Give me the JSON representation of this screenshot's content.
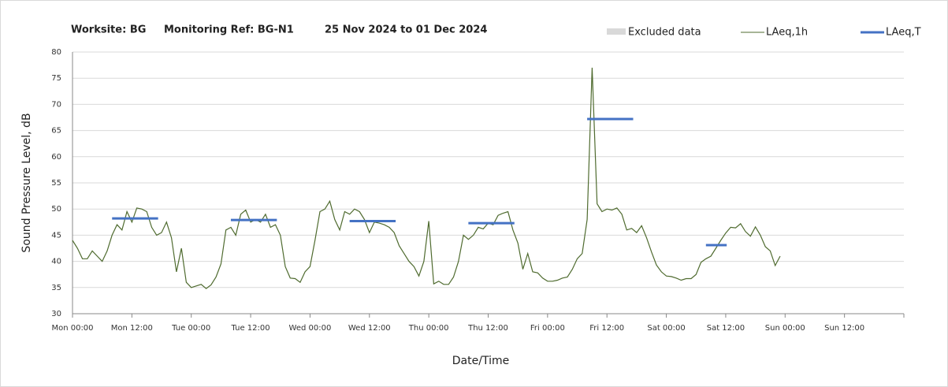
{
  "chart_data": {
    "type": "line",
    "title": [
      "Worksite: BG",
      "Monitoring Ref: BG-N1",
      "25 Nov 2024 to 01 Dec 2024"
    ],
    "x_label": "Date/Time",
    "y_label": "Sound Pressure Level, dB",
    "xlim": [
      0,
      168
    ],
    "xticks": [
      {
        "value": 0,
        "label": "Mon 00:00"
      },
      {
        "value": 12,
        "label": "Mon 12:00"
      },
      {
        "value": 24,
        "label": "Tue 00:00"
      },
      {
        "value": 36,
        "label": "Tue 12:00"
      },
      {
        "value": 48,
        "label": "Wed 00:00"
      },
      {
        "value": 60,
        "label": "Wed 12:00"
      },
      {
        "value": 72,
        "label": "Thu 00:00"
      },
      {
        "value": 84,
        "label": "Thu 12:00"
      },
      {
        "value": 96,
        "label": "Fri 00:00"
      },
      {
        "value": 108,
        "label": "Fri 12:00"
      },
      {
        "value": 120,
        "label": "Sat 00:00"
      },
      {
        "value": 132,
        "label": "Sat 12:00"
      },
      {
        "value": 144,
        "label": "Sun 00:00"
      },
      {
        "value": 156,
        "label": "Sun 12:00"
      }
    ],
    "ylim": [
      30,
      80
    ],
    "yticks": [
      30,
      35,
      40,
      45,
      50,
      55,
      60,
      65,
      70,
      75,
      80
    ],
    "grid": true,
    "legend": [
      {
        "name": "Excluded data",
        "color": "#d9d9d9"
      }
    ],
    "series": [
      {
        "name": "LAeq,1h",
        "color": "#4f6b2f",
        "x": [
          0,
          1,
          2,
          3,
          4,
          5,
          6,
          7,
          8,
          9,
          10,
          11,
          12,
          13,
          14,
          15,
          16,
          17,
          18,
          19,
          20,
          21,
          22,
          23,
          24,
          25,
          26,
          27,
          28,
          29,
          30,
          31,
          32,
          33,
          34,
          35,
          36,
          37,
          38,
          39,
          40,
          41,
          42,
          43,
          44,
          45,
          46,
          47,
          48,
          49,
          50,
          51,
          52,
          53,
          54,
          55,
          56,
          57,
          58,
          59,
          60,
          61,
          62,
          63,
          64,
          65,
          66,
          67,
          68,
          69,
          70,
          71,
          72,
          73,
          74,
          75,
          76,
          77,
          78,
          79,
          80,
          81,
          82,
          83,
          84,
          85,
          86,
          87,
          88,
          89,
          90,
          91,
          92,
          93,
          94,
          95,
          96,
          97,
          98,
          99,
          100,
          101,
          102,
          103,
          104,
          105,
          106,
          107,
          108,
          109,
          110,
          111,
          112,
          113,
          114,
          115,
          116,
          117,
          118,
          119,
          120,
          121,
          122,
          123,
          124,
          125,
          126,
          127,
          128,
          129,
          130,
          131,
          132,
          133,
          134,
          135,
          136,
          137,
          138,
          139,
          140,
          141,
          142,
          143
        ],
        "values": [
          44,
          42.5,
          40.5,
          40.5,
          42,
          41,
          40,
          42,
          45,
          47,
          46,
          49.5,
          47.5,
          50.2,
          50,
          49.5,
          46.5,
          45,
          45.5,
          47.5,
          44.5,
          38,
          42.5,
          36,
          35,
          35.3,
          35.6,
          34.8,
          35.5,
          37,
          39.5,
          46,
          46.5,
          45,
          49,
          49.8,
          47.5,
          48,
          47.5,
          49,
          46.5,
          47,
          45,
          39,
          36.8,
          36.7,
          36,
          38,
          39,
          44,
          49.5,
          50,
          51.5,
          48,
          46,
          49.5,
          49,
          50,
          49.5,
          48,
          45.5,
          47.5,
          47.3,
          47,
          46.5,
          45.5,
          43,
          41.5,
          40,
          39,
          37.2,
          40,
          47.7,
          35.7,
          36.2,
          35.6,
          35.6,
          37,
          40,
          45,
          44.2,
          45,
          46.5,
          46.2,
          47.3,
          47,
          48.8,
          49.2,
          49.5,
          46,
          43.5,
          38.5,
          41.5,
          38,
          37.8,
          36.8,
          36.2,
          36.2,
          36.4,
          36.8,
          37,
          38.5,
          40.5,
          41.5,
          48,
          77,
          51,
          49.5,
          50,
          49.8,
          50.2,
          49,
          46,
          46.3,
          45.5,
          46.8,
          44.5,
          41.8,
          39.3,
          38,
          37.2,
          37.1,
          36.8,
          36.4,
          36.7,
          36.7,
          37.5,
          39.8,
          40.5,
          41,
          42.5,
          44,
          45.4,
          46.5,
          46.4,
          47.2,
          45.7,
          44.8,
          46.6,
          45,
          42.8,
          42,
          39.2,
          41
        ]
      },
      {
        "name": "LAeq,T",
        "color": "#4472c4",
        "segments": [
          {
            "start": 8,
            "end": 17.3,
            "value": 48.2
          },
          {
            "start": 32,
            "end": 41.3,
            "value": 47.9
          },
          {
            "start": 56,
            "end": 65.3,
            "value": 47.7
          },
          {
            "start": 80,
            "end": 89.3,
            "value": 47.3
          },
          {
            "start": 104,
            "end": 113.3,
            "value": 67.2
          },
          {
            "start": 128,
            "end": 132.2,
            "value": 43.1
          }
        ]
      }
    ]
  }
}
